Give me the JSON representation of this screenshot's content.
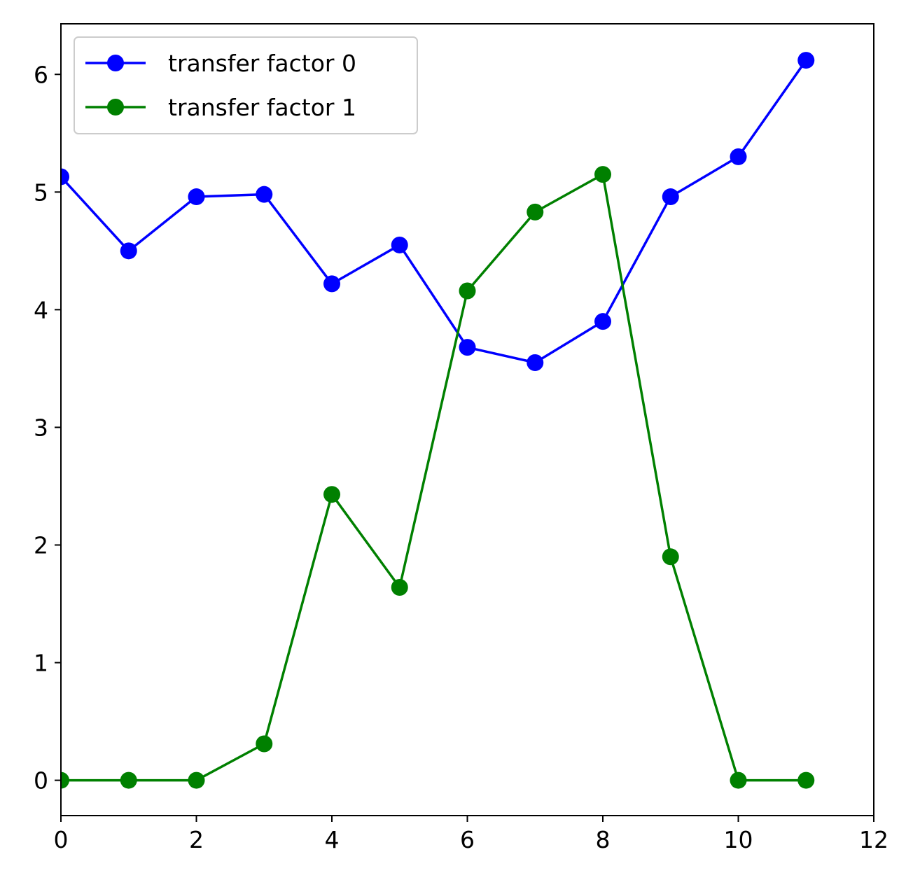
{
  "chart_data": {
    "type": "line",
    "title": "",
    "xlabel": "",
    "ylabel": "",
    "xlim": [
      0,
      12
    ],
    "ylim": [
      -0.3,
      6.43
    ],
    "xticks": [
      0,
      2,
      4,
      6,
      8,
      10,
      12
    ],
    "yticks": [
      0,
      1,
      2,
      3,
      4,
      5,
      6
    ],
    "xtick_labels": [
      "0",
      "2",
      "4",
      "6",
      "8",
      "10",
      "12"
    ],
    "ytick_labels": [
      "0",
      "1",
      "2",
      "3",
      "4",
      "5",
      "6"
    ],
    "grid": false,
    "legend_position": "top-left",
    "x": [
      0,
      1,
      2,
      3,
      4,
      5,
      6,
      7,
      8,
      9,
      10,
      11
    ],
    "series": [
      {
        "name": "transfer factor 0",
        "color": "#0000ff",
        "marker": "circle",
        "values": [
          5.13,
          4.5,
          4.96,
          4.98,
          4.22,
          4.55,
          3.68,
          3.55,
          3.9,
          4.96,
          5.3,
          6.12
        ]
      },
      {
        "name": "transfer factor 1",
        "color": "#008000",
        "marker": "circle",
        "values": [
          0,
          0,
          0,
          0.31,
          2.43,
          1.64,
          4.16,
          4.83,
          5.15,
          1.9,
          0,
          0
        ]
      }
    ]
  }
}
